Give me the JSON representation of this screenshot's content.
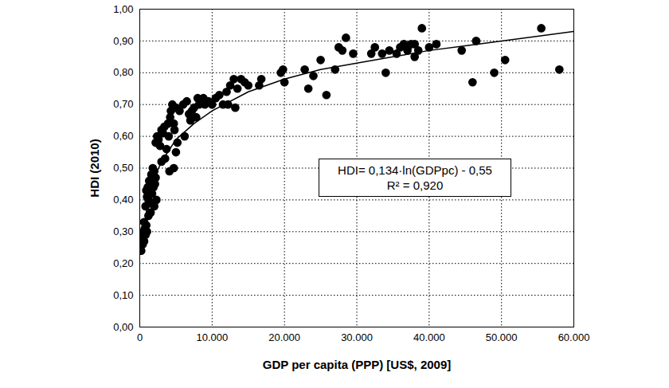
{
  "chart_data": {
    "type": "scatter",
    "x_label": "GDP per capita (PPP) [US$, 2009]",
    "y_label": "HDI (2010)",
    "annotation": [
      "HDI= 0,134·ln(GDPpc) - 0,55",
      "R² = 0,920"
    ],
    "xlim": [
      0,
      60000
    ],
    "xticks": [
      0,
      {
        "value": 10000,
        "label": "10.000"
      },
      {
        "value": 20000,
        "label": "20.000"
      },
      {
        "value": 30000,
        "label": "30.000"
      },
      {
        "value": 40000,
        "label": "40.000"
      },
      {
        "value": 50000,
        "label": "50.000"
      },
      {
        "value": 60000,
        "label": "60.000"
      }
    ],
    "ylim": [
      0,
      1
    ],
    "yticks": [
      {
        "value": 0,
        "label": "0,00"
      },
      {
        "value": 0.1,
        "label": "0,10"
      },
      {
        "value": 0.2,
        "label": "0,20"
      },
      {
        "value": 0.3,
        "label": "0,30"
      },
      {
        "value": 0.4,
        "label": "0,40"
      },
      {
        "value": 0.5,
        "label": "0,50"
      },
      {
        "value": 0.6,
        "label": "0,60"
      },
      {
        "value": 0.7,
        "label": "0,70"
      },
      {
        "value": 0.8,
        "label": "0,80"
      },
      {
        "value": 0.9,
        "label": "0,90"
      },
      {
        "value": 1,
        "label": "1,00"
      }
    ],
    "grid": true,
    "series": [
      {
        "type": "scatter",
        "color": "#000000",
        "marker": "circle",
        "x": [
          200,
          300,
          400,
          500,
          600,
          700,
          800,
          900,
          1000,
          400,
          600,
          800,
          900,
          1000,
          1100,
          1200,
          1300,
          1400,
          1500,
          1600,
          1700,
          1800,
          1900,
          2000,
          2100,
          2200,
          1200,
          1500,
          2300,
          2000,
          2200,
          2400,
          2600,
          2800,
          3000,
          3200,
          3400,
          3000,
          3500,
          3700,
          3900,
          4000,
          4200,
          4300,
          4500,
          4700,
          4800,
          5000,
          5200,
          4100,
          4700,
          5000,
          5500,
          6000,
          6200,
          6500,
          6800,
          7000,
          7200,
          7500,
          7800,
          8000,
          8200,
          8500,
          8800,
          9000,
          9500,
          10000,
          10500,
          11000,
          11500,
          12000,
          12200,
          12500,
          13000,
          13200,
          13500,
          14000,
          14500,
          15000,
          16500,
          16800,
          19500,
          19800,
          20000,
          22800,
          23300,
          24000,
          25000,
          25800,
          27000,
          27500,
          28000,
          28500,
          29500,
          32000,
          32500,
          33500,
          34000,
          34500,
          35500,
          36000,
          36500,
          37000,
          37000,
          37500,
          38000,
          38000,
          38500,
          39000,
          40000,
          41000,
          44500,
          46000,
          46500,
          49000,
          50500,
          55500,
          58000
        ],
        "values": [
          0.24,
          0.28,
          0.29,
          0.3,
          0.27,
          0.31,
          0.29,
          0.32,
          0.3,
          0.26,
          0.33,
          0.38,
          0.43,
          0.41,
          0.44,
          0.4,
          0.46,
          0.43,
          0.39,
          0.48,
          0.42,
          0.5,
          0.44,
          0.38,
          0.45,
          0.47,
          0.35,
          0.36,
          0.4,
          0.49,
          0.58,
          0.6,
          0.59,
          0.57,
          0.62,
          0.61,
          0.63,
          0.52,
          0.53,
          0.56,
          0.64,
          0.6,
          0.66,
          0.68,
          0.7,
          0.64,
          0.62,
          0.69,
          0.58,
          0.49,
          0.5,
          0.55,
          0.68,
          0.7,
          0.6,
          0.71,
          0.67,
          0.65,
          0.68,
          0.69,
          0.66,
          0.72,
          0.7,
          0.71,
          0.72,
          0.7,
          0.71,
          0.7,
          0.72,
          0.73,
          0.7,
          0.74,
          0.7,
          0.76,
          0.78,
          0.69,
          0.75,
          0.78,
          0.77,
          0.76,
          0.76,
          0.78,
          0.8,
          0.81,
          0.77,
          0.81,
          0.75,
          0.79,
          0.84,
          0.73,
          0.81,
          0.88,
          0.87,
          0.91,
          0.86,
          0.86,
          0.88,
          0.86,
          0.8,
          0.87,
          0.86,
          0.88,
          0.89,
          0.87,
          0.88,
          0.89,
          0.85,
          0.89,
          0.87,
          0.94,
          0.88,
          0.89,
          0.87,
          0.77,
          0.9,
          0.8,
          0.84,
          0.94,
          0.81
        ]
      },
      {
        "type": "line",
        "color": "#000000",
        "line_style": "solid",
        "x": [
          500,
          1000,
          2000,
          3000,
          5000,
          7500,
          10000,
          15000,
          20000,
          25000,
          30000,
          35000,
          40000,
          45000,
          50000,
          55000,
          60000
        ],
        "values": [
          0.28,
          0.38,
          0.47,
          0.52,
          0.59,
          0.64,
          0.68,
          0.74,
          0.78,
          0.81,
          0.83,
          0.85,
          0.87,
          0.885,
          0.9,
          0.915,
          0.93
        ]
      }
    ]
  }
}
